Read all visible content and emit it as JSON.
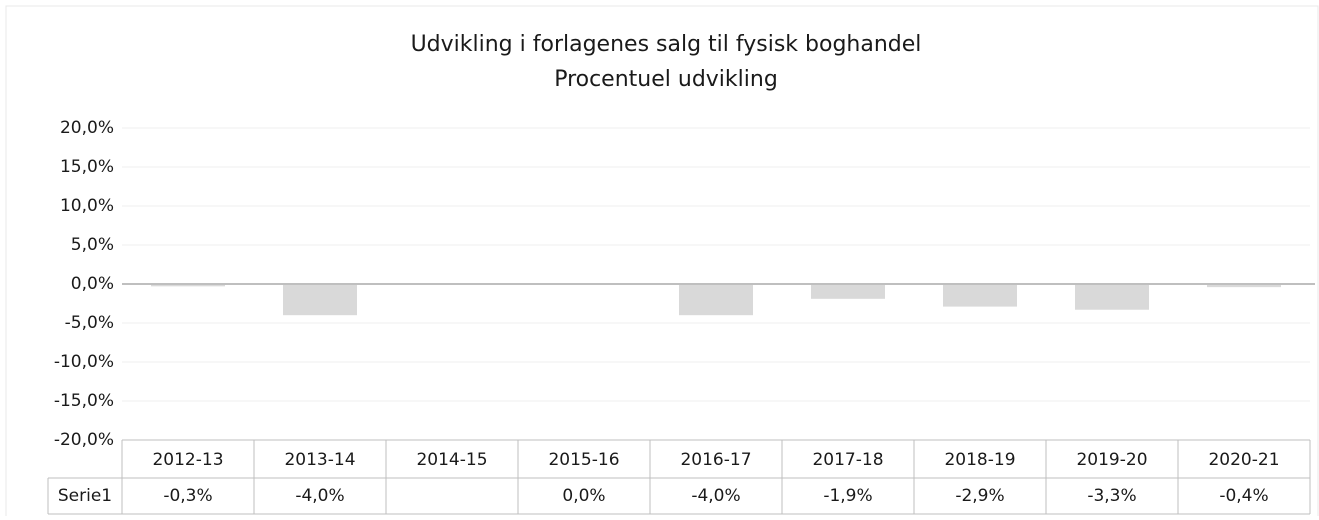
{
  "chart_data": {
    "type": "bar",
    "title": "Udvikling i forlagenes salg til fysisk boghandel",
    "subtitle": "Procentuel udvikling",
    "categories": [
      "2012-13",
      "2013-14",
      "2014-15",
      "2015-16",
      "2016-17",
      "2017-18",
      "2018-19",
      "2019-20",
      "2020-21"
    ],
    "series": [
      {
        "name": "Serie1",
        "color": "#d9d9d9",
        "values": [
          -0.3,
          -4.0,
          null,
          0.0,
          -4.0,
          -1.9,
          -2.9,
          -3.3,
          -0.4
        ],
        "value_labels": [
          "-0,3%",
          "-4,0%",
          null,
          "0,0%",
          "-4,0%",
          "-1,9%",
          "-2,9%",
          "-3,3%",
          "-0,4%"
        ]
      }
    ],
    "ylim": [
      -20,
      20
    ],
    "yticks": [
      {
        "value": -20,
        "label": "-20,0%"
      },
      {
        "value": -15,
        "label": "-15,0%"
      },
      {
        "value": -10,
        "label": "-10,0%"
      },
      {
        "value": -5,
        "label": "-5,0%"
      },
      {
        "value": 0,
        "label": "0,0%"
      },
      {
        "value": 5,
        "label": "5,0%"
      },
      {
        "value": 10,
        "label": "10,0%"
      },
      {
        "value": 15,
        "label": "15,0%"
      },
      {
        "value": 20,
        "label": "20,0%"
      }
    ],
    "grid": true
  }
}
